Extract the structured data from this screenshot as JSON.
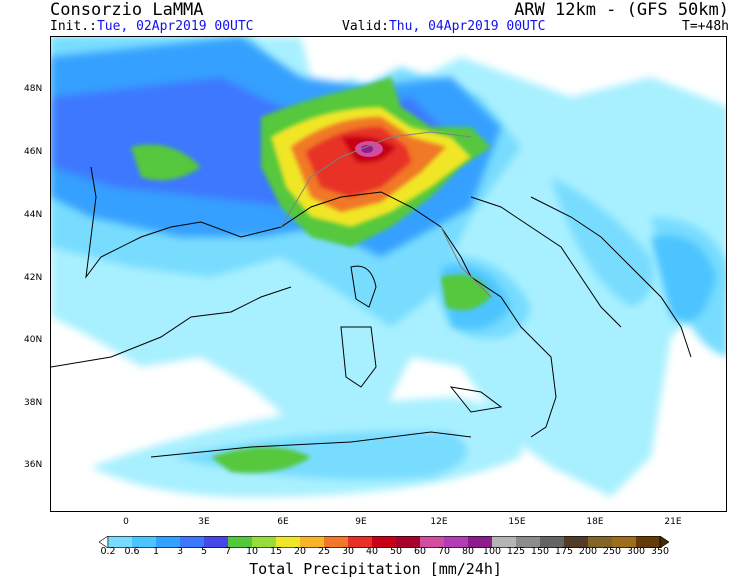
{
  "header": {
    "title_left": "Consorzio LaMMA",
    "title_right": "ARW 12km - (GFS 50km)",
    "init_prefix": "Init.:",
    "init_value": "Tue, 02Apr2019 00UTC",
    "valid_prefix": "Valid:",
    "valid_value": "Thu, 04Apr2019 00UTC",
    "lead_time": "T=+48h"
  },
  "map": {
    "lat_labels": [
      "48N",
      "46N",
      "44N",
      "42N",
      "40N",
      "38N",
      "36N"
    ],
    "lon_labels": [
      "0",
      "3E",
      "6E",
      "9E",
      "12E",
      "15E",
      "18E",
      "21E"
    ]
  },
  "colorbar": {
    "levels": [
      "0.2",
      "0.6",
      "1",
      "3",
      "5",
      "7",
      "10",
      "15",
      "20",
      "25",
      "30",
      "40",
      "50",
      "60",
      "70",
      "80",
      "100",
      "125",
      "150",
      "175",
      "200",
      "250",
      "300",
      "350"
    ],
    "colors": [
      "#a8f0ff",
      "#78dcff",
      "#4cc4ff",
      "#34a0ff",
      "#3c78ff",
      "#4848e8",
      "#54c83c",
      "#98dc3c",
      "#f0e628",
      "#f8b428",
      "#f07828",
      "#e83028",
      "#c80018",
      "#a8002c",
      "#d24ca0",
      "#b43cb4",
      "#8c1e8c",
      "#b4b4b4",
      "#8c8c8c",
      "#646464",
      "#503c28",
      "#826428",
      "#9c6e1e",
      "#643c0a",
      "#4a2800"
    ],
    "units_label": "Total Precipitation [mm/24h]"
  }
}
